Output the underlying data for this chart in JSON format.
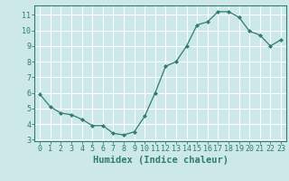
{
  "x": [
    0,
    1,
    2,
    3,
    4,
    5,
    6,
    7,
    8,
    9,
    10,
    11,
    12,
    13,
    14,
    15,
    16,
    17,
    18,
    19,
    20,
    21,
    22,
    23
  ],
  "y": [
    5.9,
    5.1,
    4.7,
    4.6,
    4.3,
    3.9,
    3.9,
    3.4,
    3.3,
    3.5,
    4.5,
    6.0,
    7.7,
    8.0,
    9.0,
    10.35,
    10.55,
    11.2,
    11.2,
    10.85,
    9.95,
    9.7,
    9.0,
    9.4
  ],
  "xlim": [
    -0.5,
    23.5
  ],
  "ylim": [
    2.9,
    11.6
  ],
  "yticks": [
    3,
    4,
    5,
    6,
    7,
    8,
    9,
    10,
    11
  ],
  "xticks": [
    0,
    1,
    2,
    3,
    4,
    5,
    6,
    7,
    8,
    9,
    10,
    11,
    12,
    13,
    14,
    15,
    16,
    17,
    18,
    19,
    20,
    21,
    22,
    23
  ],
  "xlabel": "Humidex (Indice chaleur)",
  "line_color": "#2e7d6e",
  "marker": "D",
  "marker_size": 2.0,
  "bg_color": "#cce8e8",
  "grid_color": "#ffffff",
  "tick_label_color": "#2e7d6e",
  "axis_color": "#2e7d6e",
  "xlabel_color": "#2e7d6e",
  "xlabel_fontsize": 7.5,
  "tick_fontsize": 6.0
}
